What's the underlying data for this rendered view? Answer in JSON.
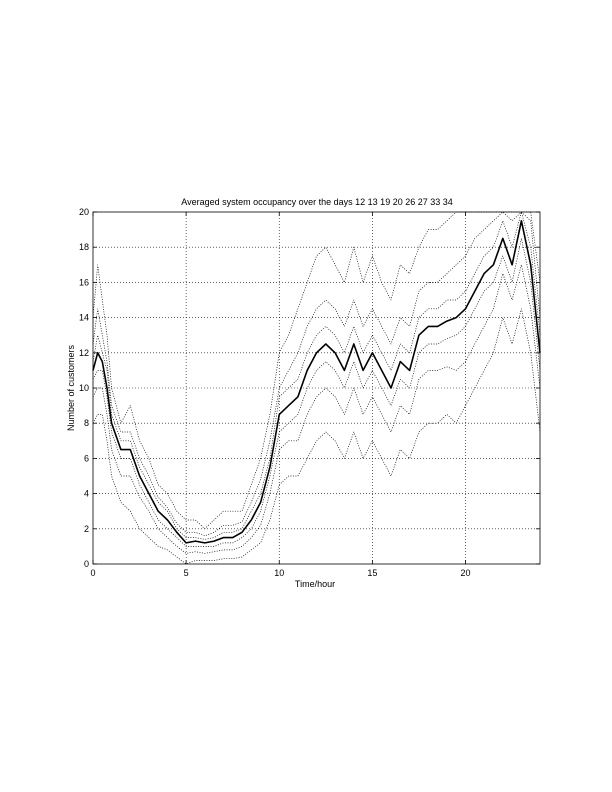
{
  "chart_data": {
    "type": "line",
    "title": "Averaged system occupancy over the days 12 13 19 20 26 27 33 34",
    "xlabel": "Time/hour",
    "ylabel": "Number of customers",
    "xlim": [
      0,
      24
    ],
    "ylim": [
      0,
      20
    ],
    "xticks": [
      "0",
      "5",
      "10",
      "15",
      "20"
    ],
    "yticks": [
      "0",
      "2",
      "4",
      "6",
      "8",
      "10",
      "12",
      "14",
      "16",
      "18",
      "20"
    ],
    "grid": true,
    "legend": "none",
    "series": [
      {
        "style": "solid",
        "x": [
          0,
          0.25,
          0.5,
          0.75,
          1.0,
          1.5,
          2.0,
          2.5,
          3.0,
          3.5,
          4.0,
          4.5,
          5.0,
          5.5,
          6.0,
          6.5,
          7.0,
          7.5,
          8.0,
          8.5,
          9.0,
          9.5,
          10.0,
          10.5,
          11.0,
          11.5,
          12.0,
          12.5,
          13.0,
          13.5,
          14.0,
          14.5,
          15.0,
          15.5,
          16.0,
          16.5,
          17.0,
          17.5,
          18.0,
          18.5,
          19.0,
          19.5,
          20.0,
          20.5,
          21.0,
          21.5,
          22.0,
          22.5,
          23.0,
          23.5,
          24.0
        ],
        "values": [
          11.0,
          12.0,
          11.5,
          10.0,
          8.0,
          6.5,
          6.5,
          5.0,
          4.0,
          3.0,
          2.5,
          1.8,
          1.2,
          1.3,
          1.2,
          1.3,
          1.5,
          1.5,
          1.8,
          2.5,
          3.5,
          5.5,
          8.5,
          9.0,
          9.5,
          11.0,
          12.0,
          12.5,
          12.0,
          11.0,
          12.5,
          11.0,
          12.0,
          11.0,
          10.0,
          11.5,
          11.0,
          13.0,
          13.5,
          13.5,
          13.8,
          14.0,
          14.5,
          15.5,
          16.5,
          17.0,
          18.5,
          17.0,
          19.5,
          17.0,
          12.0
        ]
      },
      {
        "style": "dotted",
        "x": [
          0,
          0.25,
          0.5,
          0.75,
          1.0,
          1.5,
          2.0,
          2.5,
          3.0,
          3.5,
          4.0,
          4.5,
          5.0,
          5.5,
          6.0,
          6.5,
          7.0,
          7.5,
          8.0,
          8.5,
          9.0,
          9.5,
          10.0,
          10.5,
          11.0,
          11.5,
          12.0,
          12.5,
          13.0,
          13.5,
          14.0,
          14.5,
          15.0,
          15.5,
          16.0,
          16.5,
          17.0,
          17.5,
          18.0,
          18.5,
          19.0,
          19.5,
          20.0,
          20.5,
          21.0,
          21.5,
          22.0,
          22.5,
          23.0,
          23.5,
          24.0
        ],
        "values": [
          14.0,
          17.0,
          15.0,
          13.0,
          10.0,
          8.0,
          9.0,
          7.0,
          6.0,
          4.5,
          4.0,
          3.0,
          2.5,
          2.5,
          2.0,
          2.5,
          3.0,
          3.0,
          3.0,
          4.5,
          6.0,
          8.5,
          12.0,
          13.0,
          14.5,
          16.0,
          17.5,
          18.0,
          17.0,
          16.0,
          18.0,
          16.0,
          17.5,
          16.0,
          15.0,
          17.0,
          16.5,
          18.0,
          19.0,
          19.0,
          19.5,
          20.0,
          20.0,
          20.0,
          20.0,
          20.0,
          20.0,
          20.0,
          20.0,
          20.0,
          16.0
        ]
      },
      {
        "style": "dotted",
        "x": [
          0,
          0.25,
          0.5,
          0.75,
          1.0,
          1.5,
          2.0,
          2.5,
          3.0,
          3.5,
          4.0,
          4.5,
          5.0,
          5.5,
          6.0,
          6.5,
          7.0,
          7.5,
          8.0,
          8.5,
          9.0,
          9.5,
          10.0,
          10.5,
          11.0,
          11.5,
          12.0,
          12.5,
          13.0,
          13.5,
          14.0,
          14.5,
          15.0,
          15.5,
          16.0,
          16.5,
          17.0,
          17.5,
          18.0,
          18.5,
          19.0,
          19.5,
          20.0,
          20.5,
          21.0,
          21.5,
          22.0,
          22.5,
          23.0,
          23.5,
          24.0
        ],
        "values": [
          12.5,
          14.5,
          13.0,
          11.5,
          9.0,
          7.5,
          7.5,
          6.0,
          5.0,
          3.8,
          3.2,
          2.3,
          1.8,
          1.8,
          1.6,
          1.8,
          2.2,
          2.2,
          2.4,
          3.5,
          4.8,
          7.0,
          10.0,
          11.0,
          12.0,
          13.5,
          14.5,
          15.0,
          14.5,
          13.5,
          15.0,
          13.5,
          14.5,
          13.5,
          12.5,
          14.0,
          13.5,
          15.5,
          16.0,
          16.0,
          16.5,
          17.0,
          17.5,
          18.5,
          19.0,
          19.5,
          20.0,
          19.5,
          20.0,
          19.5,
          14.0
        ]
      },
      {
        "style": "dotted",
        "x": [
          0,
          0.25,
          0.5,
          0.75,
          1.0,
          1.5,
          2.0,
          2.5,
          3.0,
          3.5,
          4.0,
          4.5,
          5.0,
          5.5,
          6.0,
          6.5,
          7.0,
          7.5,
          8.0,
          8.5,
          9.0,
          9.5,
          10.0,
          10.5,
          11.0,
          11.5,
          12.0,
          12.5,
          13.0,
          13.5,
          14.0,
          14.5,
          15.0,
          15.5,
          16.0,
          16.5,
          17.0,
          17.5,
          18.0,
          18.5,
          19.0,
          19.5,
          20.0,
          20.5,
          21.0,
          21.5,
          22.0,
          22.5,
          23.0,
          23.5,
          24.0
        ],
        "values": [
          9.5,
          10.0,
          10.0,
          8.5,
          6.5,
          5.0,
          5.0,
          3.8,
          3.0,
          2.0,
          1.5,
          1.0,
          0.6,
          0.7,
          0.6,
          0.7,
          0.8,
          0.8,
          1.0,
          1.5,
          2.2,
          4.0,
          6.5,
          7.0,
          7.0,
          8.5,
          9.5,
          10.0,
          9.5,
          8.5,
          10.0,
          8.5,
          9.5,
          8.5,
          7.5,
          9.0,
          8.5,
          10.5,
          11.0,
          11.0,
          11.2,
          11.0,
          11.5,
          12.5,
          13.5,
          14.5,
          16.5,
          15.0,
          17.0,
          14.5,
          10.0
        ]
      },
      {
        "style": "dotted",
        "x": [
          0,
          0.25,
          0.5,
          0.75,
          1.0,
          1.5,
          2.0,
          2.5,
          3.0,
          3.5,
          4.0,
          4.5,
          5.0,
          5.5,
          6.0,
          6.5,
          7.0,
          7.5,
          8.0,
          8.5,
          9.0,
          9.5,
          10.0,
          10.5,
          11.0,
          11.5,
          12.0,
          12.5,
          13.0,
          13.5,
          14.0,
          14.5,
          15.0,
          15.5,
          16.0,
          16.5,
          17.0,
          17.5,
          18.0,
          18.5,
          19.0,
          19.5,
          20.0,
          20.5,
          21.0,
          21.5,
          22.0,
          22.5,
          23.0,
          23.5,
          24.0
        ],
        "values": [
          8.0,
          8.5,
          8.5,
          7.0,
          5.0,
          3.5,
          3.0,
          2.0,
          1.5,
          1.0,
          0.8,
          0.4,
          0.0,
          0.2,
          0.2,
          0.2,
          0.3,
          0.3,
          0.4,
          0.8,
          1.2,
          2.5,
          4.5,
          5.0,
          5.0,
          6.0,
          7.0,
          7.5,
          7.0,
          6.0,
          7.5,
          6.0,
          7.0,
          6.0,
          5.0,
          6.5,
          6.0,
          7.5,
          8.0,
          8.0,
          8.5,
          8.0,
          9.0,
          10.0,
          11.0,
          12.0,
          14.0,
          12.5,
          14.5,
          12.0,
          7.5
        ]
      },
      {
        "style": "dotted",
        "x": [
          0,
          0.25,
          0.5,
          0.75,
          1.0,
          1.5,
          2.0,
          2.5,
          3.0,
          3.5,
          4.0,
          4.5,
          5.0,
          5.5,
          6.0,
          6.5,
          7.0,
          7.5,
          8.0,
          8.5,
          9.0,
          9.5,
          10.0,
          10.5,
          11.0,
          11.5,
          12.0,
          12.5,
          13.0,
          13.5,
          14.0,
          14.5,
          15.0,
          15.5,
          16.0,
          16.5,
          17.0,
          17.5,
          18.0,
          18.5,
          19.0,
          19.5,
          20.0,
          20.5,
          21.0,
          21.5,
          22.0,
          22.5,
          23.0,
          23.5,
          24.0
        ],
        "values": [
          11.5,
          13.0,
          12.0,
          11.0,
          8.5,
          7.0,
          7.0,
          5.5,
          4.5,
          3.5,
          3.0,
          2.0,
          1.5,
          1.5,
          1.4,
          1.5,
          1.8,
          1.8,
          2.0,
          3.0,
          4.0,
          6.0,
          9.5,
          10.0,
          10.5,
          12.0,
          13.0,
          13.5,
          13.0,
          12.0,
          13.5,
          12.0,
          13.0,
          12.0,
          11.0,
          12.5,
          12.0,
          14.0,
          14.5,
          14.5,
          15.0,
          15.0,
          15.5,
          16.5,
          17.5,
          18.0,
          19.5,
          18.0,
          20.0,
          18.0,
          13.0
        ]
      },
      {
        "style": "dotted",
        "x": [
          0,
          0.25,
          0.5,
          0.75,
          1.0,
          1.5,
          2.0,
          2.5,
          3.0,
          3.5,
          4.0,
          4.5,
          5.0,
          5.5,
          6.0,
          6.5,
          7.0,
          7.5,
          8.0,
          8.5,
          9.0,
          9.5,
          10.0,
          10.5,
          11.0,
          11.5,
          12.0,
          12.5,
          13.0,
          13.5,
          14.0,
          14.5,
          15.0,
          15.5,
          16.0,
          16.5,
          17.0,
          17.5,
          18.0,
          18.5,
          19.0,
          19.5,
          20.0,
          20.5,
          21.0,
          21.5,
          22.0,
          22.5,
          23.0,
          23.5,
          24.0
        ],
        "values": [
          10.5,
          11.0,
          11.0,
          9.5,
          7.5,
          6.0,
          6.0,
          4.5,
          3.5,
          2.5,
          2.0,
          1.5,
          1.0,
          1.0,
          1.0,
          1.0,
          1.2,
          1.2,
          1.5,
          2.0,
          3.0,
          5.0,
          7.5,
          8.0,
          8.5,
          10.0,
          11.0,
          11.5,
          11.0,
          10.0,
          11.5,
          10.0,
          11.0,
          10.0,
          9.0,
          10.5,
          10.0,
          12.0,
          12.5,
          12.5,
          12.8,
          13.0,
          13.5,
          14.5,
          15.5,
          16.0,
          17.5,
          16.0,
          18.5,
          16.0,
          11.0
        ]
      }
    ]
  }
}
